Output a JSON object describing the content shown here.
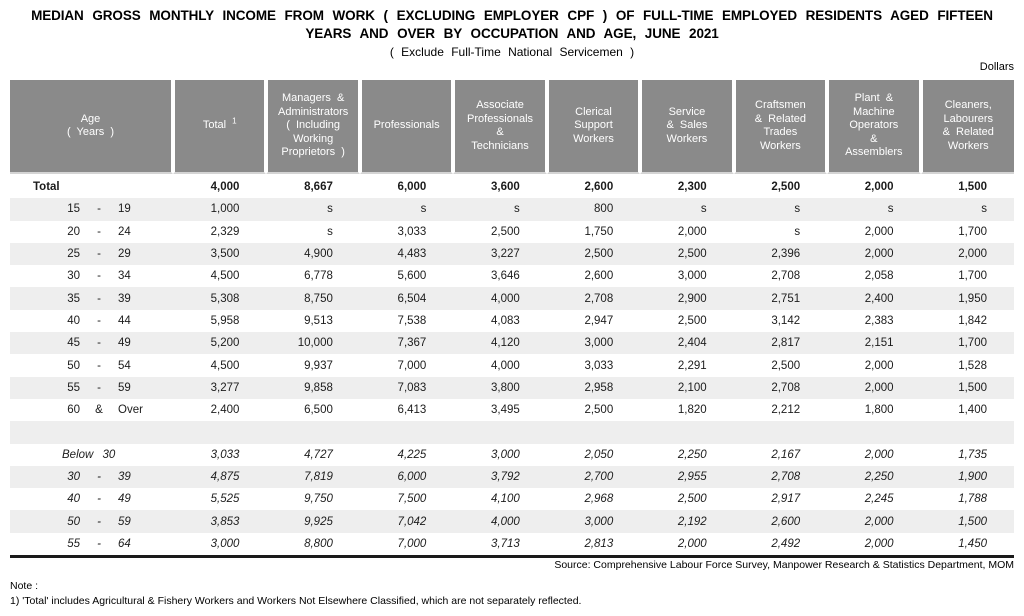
{
  "title": {
    "line1": "MEDIAN GROSS MONTHLY INCOME FROM WORK ( EXCLUDING EMPLOYER CPF ) OF FULL-TIME EMPLOYED RESIDENTS AGED FIFTEEN",
    "line2": "YEARS AND OVER BY OCCUPATION AND AGE, JUNE 2021",
    "line3": "( Exclude Full-Time National Servicemen )"
  },
  "units_label": "Dollars",
  "table": {
    "headers": [
      {
        "lines": [
          "Age",
          "( Years )"
        ]
      },
      {
        "lines": [
          "Total"
        ],
        "sup": "1"
      },
      {
        "lines": [
          "Managers &",
          "Administrators",
          "( Including",
          "Working",
          "Proprietors )"
        ]
      },
      {
        "lines": [
          "Professionals"
        ]
      },
      {
        "lines": [
          "Associate",
          "Professionals",
          "&",
          "Technicians"
        ]
      },
      {
        "lines": [
          "Clerical",
          "Support",
          "Workers"
        ]
      },
      {
        "lines": [
          "Service",
          "& Sales",
          "Workers"
        ]
      },
      {
        "lines": [
          "Craftsmen",
          "& Related",
          "Trades",
          "Workers"
        ]
      },
      {
        "lines": [
          "Plant &",
          "Machine",
          "Operators",
          "&",
          "Assemblers"
        ]
      },
      {
        "lines": [
          "Cleaners,",
          "Labourers",
          "& Related",
          "Workers"
        ]
      }
    ],
    "rows": [
      {
        "type": "total",
        "label": "Total",
        "values": [
          "4,000",
          "8,667",
          "6,000",
          "3,600",
          "2,600",
          "2,300",
          "2,500",
          "2,000",
          "1,500"
        ]
      },
      {
        "type": "range",
        "shade": true,
        "from": "15",
        "sep": "-",
        "to": "19",
        "values": [
          "1,000",
          "s",
          "s",
          "s",
          "800",
          "s",
          "s",
          "s",
          "s"
        ]
      },
      {
        "type": "range",
        "from": "20",
        "sep": "-",
        "to": "24",
        "values": [
          "2,329",
          "s",
          "3,033",
          "2,500",
          "1,750",
          "2,000",
          "s",
          "2,000",
          "1,700"
        ]
      },
      {
        "type": "range",
        "shade": true,
        "from": "25",
        "sep": "-",
        "to": "29",
        "values": [
          "3,500",
          "4,900",
          "4,483",
          "3,227",
          "2,500",
          "2,500",
          "2,396",
          "2,000",
          "2,000"
        ]
      },
      {
        "type": "range",
        "from": "30",
        "sep": "-",
        "to": "34",
        "values": [
          "4,500",
          "6,778",
          "5,600",
          "3,646",
          "2,600",
          "3,000",
          "2,708",
          "2,058",
          "1,700"
        ]
      },
      {
        "type": "range",
        "shade": true,
        "from": "35",
        "sep": "-",
        "to": "39",
        "values": [
          "5,308",
          "8,750",
          "6,504",
          "4,000",
          "2,708",
          "2,900",
          "2,751",
          "2,400",
          "1,950"
        ]
      },
      {
        "type": "range",
        "from": "40",
        "sep": "-",
        "to": "44",
        "values": [
          "5,958",
          "9,513",
          "7,538",
          "4,083",
          "2,947",
          "2,500",
          "3,142",
          "2,383",
          "1,842"
        ]
      },
      {
        "type": "range",
        "shade": true,
        "from": "45",
        "sep": "-",
        "to": "49",
        "values": [
          "5,200",
          "10,000",
          "7,367",
          "4,120",
          "3,000",
          "2,404",
          "2,817",
          "2,151",
          "1,700"
        ]
      },
      {
        "type": "range",
        "from": "50",
        "sep": "-",
        "to": "54",
        "values": [
          "4,500",
          "9,937",
          "7,000",
          "4,000",
          "3,033",
          "2,291",
          "2,500",
          "2,000",
          "1,528"
        ]
      },
      {
        "type": "range",
        "shade": true,
        "from": "55",
        "sep": "-",
        "to": "59",
        "values": [
          "3,277",
          "9,858",
          "7,083",
          "3,800",
          "2,958",
          "2,100",
          "2,708",
          "2,000",
          "1,500"
        ]
      },
      {
        "type": "range",
        "from": "60",
        "sep": "&",
        "to": "Over",
        "values": [
          "2,400",
          "6,500",
          "6,413",
          "3,495",
          "2,500",
          "1,820",
          "2,212",
          "1,800",
          "1,400"
        ]
      },
      {
        "type": "spacer",
        "shade": true
      },
      {
        "type": "single",
        "italic": true,
        "label": "Below 30",
        "values": [
          "3,033",
          "4,727",
          "4,225",
          "3,000",
          "2,050",
          "2,250",
          "2,167",
          "2,000",
          "1,735"
        ]
      },
      {
        "type": "range",
        "italic": true,
        "shade": true,
        "from": "30",
        "sep": "-",
        "to": "39",
        "values": [
          "4,875",
          "7,819",
          "6,000",
          "3,792",
          "2,700",
          "2,955",
          "2,708",
          "2,250",
          "1,900"
        ]
      },
      {
        "type": "range",
        "italic": true,
        "from": "40",
        "sep": "-",
        "to": "49",
        "values": [
          "5,525",
          "9,750",
          "7,500",
          "4,100",
          "2,968",
          "2,500",
          "2,917",
          "2,245",
          "1,788"
        ]
      },
      {
        "type": "range",
        "italic": true,
        "shade": true,
        "from": "50",
        "sep": "-",
        "to": "59",
        "values": [
          "3,853",
          "9,925",
          "7,042",
          "4,000",
          "3,000",
          "2,192",
          "2,600",
          "2,000",
          "1,500"
        ]
      },
      {
        "type": "range",
        "italic": true,
        "from": "55",
        "sep": "-",
        "to": "64",
        "values": [
          "3,000",
          "8,800",
          "7,000",
          "3,713",
          "2,813",
          "2,000",
          "2,492",
          "2,000",
          "1,450"
        ]
      }
    ]
  },
  "source": "Source:  Comprehensive Labour Force Survey, Manpower Research & Statistics Department, MOM",
  "note_label": "Note :",
  "note1": "1) 'Total' includes Agricultural & Fishery Workers and Workers Not Elsewhere Classified, which are not separately reflected.",
  "colors": {
    "header_bg": "#8a8a8a",
    "stripe": "#eeeeee",
    "bottom_rule": "#1a1a1a"
  }
}
